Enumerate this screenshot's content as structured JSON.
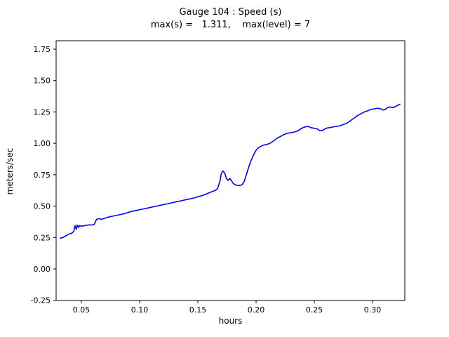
{
  "chart_data": {
    "type": "line",
    "title": "Gauge 104 : Speed (s)",
    "subtitle": "max(s) =   1.311,    max(level) = 7",
    "xlabel": "hours",
    "ylabel": "meters/sec",
    "max_s": 1.311,
    "max_level": 7,
    "grid": false,
    "legend": "none",
    "line_color": "#0000ff",
    "axis_color": "#000000",
    "xlim": [
      0.0283,
      0.3277
    ],
    "ylim": [
      -0.2515,
      1.817
    ],
    "xticks": [
      0.05,
      0.1,
      0.15,
      0.2,
      0.25,
      0.3
    ],
    "xtick_labels": [
      "0.05",
      "0.10",
      "0.15",
      "0.20",
      "0.25",
      "0.30"
    ],
    "yticks": [
      -0.25,
      0.0,
      0.25,
      0.5,
      0.75,
      1.0,
      1.25,
      1.5,
      1.75
    ],
    "ytick_labels": [
      "-0.25",
      "0.00",
      "0.25",
      "0.50",
      "0.75",
      "1.00",
      "1.25",
      "1.50",
      "1.75"
    ],
    "series": [
      {
        "name": "s",
        "x": [
          0.032,
          0.034,
          0.036,
          0.038,
          0.04,
          0.042,
          0.0435,
          0.0445,
          0.0455,
          0.0465,
          0.0475,
          0.0485,
          0.05,
          0.053,
          0.056,
          0.059,
          0.061,
          0.063,
          0.065,
          0.067,
          0.069,
          0.072,
          0.077,
          0.082,
          0.087,
          0.092,
          0.097,
          0.102,
          0.107,
          0.112,
          0.117,
          0.122,
          0.127,
          0.132,
          0.137,
          0.142,
          0.147,
          0.15,
          0.154,
          0.158,
          0.162,
          0.165,
          0.167,
          0.169,
          0.17,
          0.1715,
          0.173,
          0.1745,
          0.176,
          0.1775,
          0.179,
          0.1805,
          0.182,
          0.184,
          0.186,
          0.188,
          0.19,
          0.192,
          0.194,
          0.196,
          0.198,
          0.2,
          0.202,
          0.204,
          0.206,
          0.209,
          0.212,
          0.215,
          0.218,
          0.221,
          0.224,
          0.227,
          0.23,
          0.233,
          0.236,
          0.239,
          0.242,
          0.2445,
          0.247,
          0.25,
          0.2525,
          0.255,
          0.2575,
          0.26,
          0.263,
          0.266,
          0.269,
          0.272,
          0.275,
          0.278,
          0.281,
          0.284,
          0.287,
          0.29,
          0.293,
          0.296,
          0.299,
          0.302,
          0.3045,
          0.307,
          0.309,
          0.311,
          0.313,
          0.315,
          0.317,
          0.319,
          0.321,
          0.3235
        ],
        "y": [
          0.245,
          0.25,
          0.26,
          0.27,
          0.28,
          0.285,
          0.3,
          0.345,
          0.315,
          0.35,
          0.33,
          0.345,
          0.34,
          0.345,
          0.35,
          0.35,
          0.355,
          0.395,
          0.4,
          0.395,
          0.4,
          0.41,
          0.42,
          0.43,
          0.44,
          0.455,
          0.465,
          0.475,
          0.485,
          0.495,
          0.505,
          0.515,
          0.525,
          0.535,
          0.545,
          0.555,
          0.565,
          0.575,
          0.585,
          0.6,
          0.615,
          0.625,
          0.64,
          0.7,
          0.755,
          0.78,
          0.765,
          0.72,
          0.705,
          0.72,
          0.7,
          0.68,
          0.67,
          0.665,
          0.665,
          0.67,
          0.7,
          0.76,
          0.82,
          0.87,
          0.91,
          0.945,
          0.965,
          0.975,
          0.985,
          0.99,
          1.0,
          1.02,
          1.04,
          1.055,
          1.07,
          1.08,
          1.085,
          1.09,
          1.1,
          1.12,
          1.13,
          1.135,
          1.125,
          1.12,
          1.115,
          1.1,
          1.105,
          1.12,
          1.125,
          1.13,
          1.135,
          1.14,
          1.15,
          1.16,
          1.18,
          1.2,
          1.22,
          1.235,
          1.25,
          1.26,
          1.27,
          1.275,
          1.28,
          1.275,
          1.265,
          1.27,
          1.285,
          1.29,
          1.285,
          1.29,
          1.3,
          1.311
        ]
      }
    ]
  }
}
